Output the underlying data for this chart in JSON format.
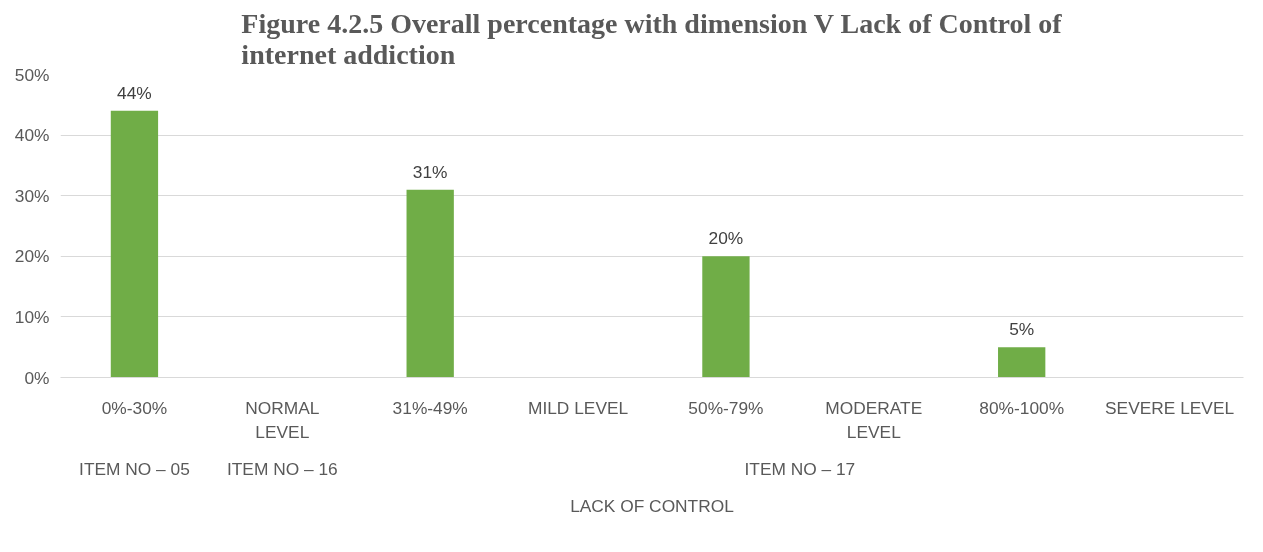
{
  "chart_data": {
    "type": "bar",
    "title": "Figure 4.2.5 Overall percentage with dimension V Lack of Control of\ninternet addiction",
    "categories": [
      "0%-30%",
      "NORMAL\nLEVEL",
      "31%-49%",
      "MILD LEVEL",
      "50%-79%",
      "MODERATE\nLEVEL",
      "80%-100%",
      "SEVERE LEVEL"
    ],
    "values": [
      44,
      null,
      31,
      null,
      20,
      null,
      5,
      null
    ],
    "color": "#70ad47",
    "value_labels": [
      "44%",
      null,
      "31%",
      null,
      "20%",
      null,
      "5%",
      null
    ],
    "ylim": [
      0,
      50
    ],
    "yticks": [
      {
        "value": 0,
        "label": "0%"
      },
      {
        "value": 10,
        "label": "10%"
      },
      {
        "value": 20,
        "label": "20%"
      },
      {
        "value": 30,
        "label": "30%"
      },
      {
        "value": 40,
        "label": "40%"
      },
      {
        "value": 50,
        "label": "50%"
      }
    ],
    "grid": "y",
    "annotations": [
      "ITEM NO – 05",
      "ITEM NO – 16",
      "ITEM NO – 17",
      "LACK OF CONTROL"
    ]
  }
}
